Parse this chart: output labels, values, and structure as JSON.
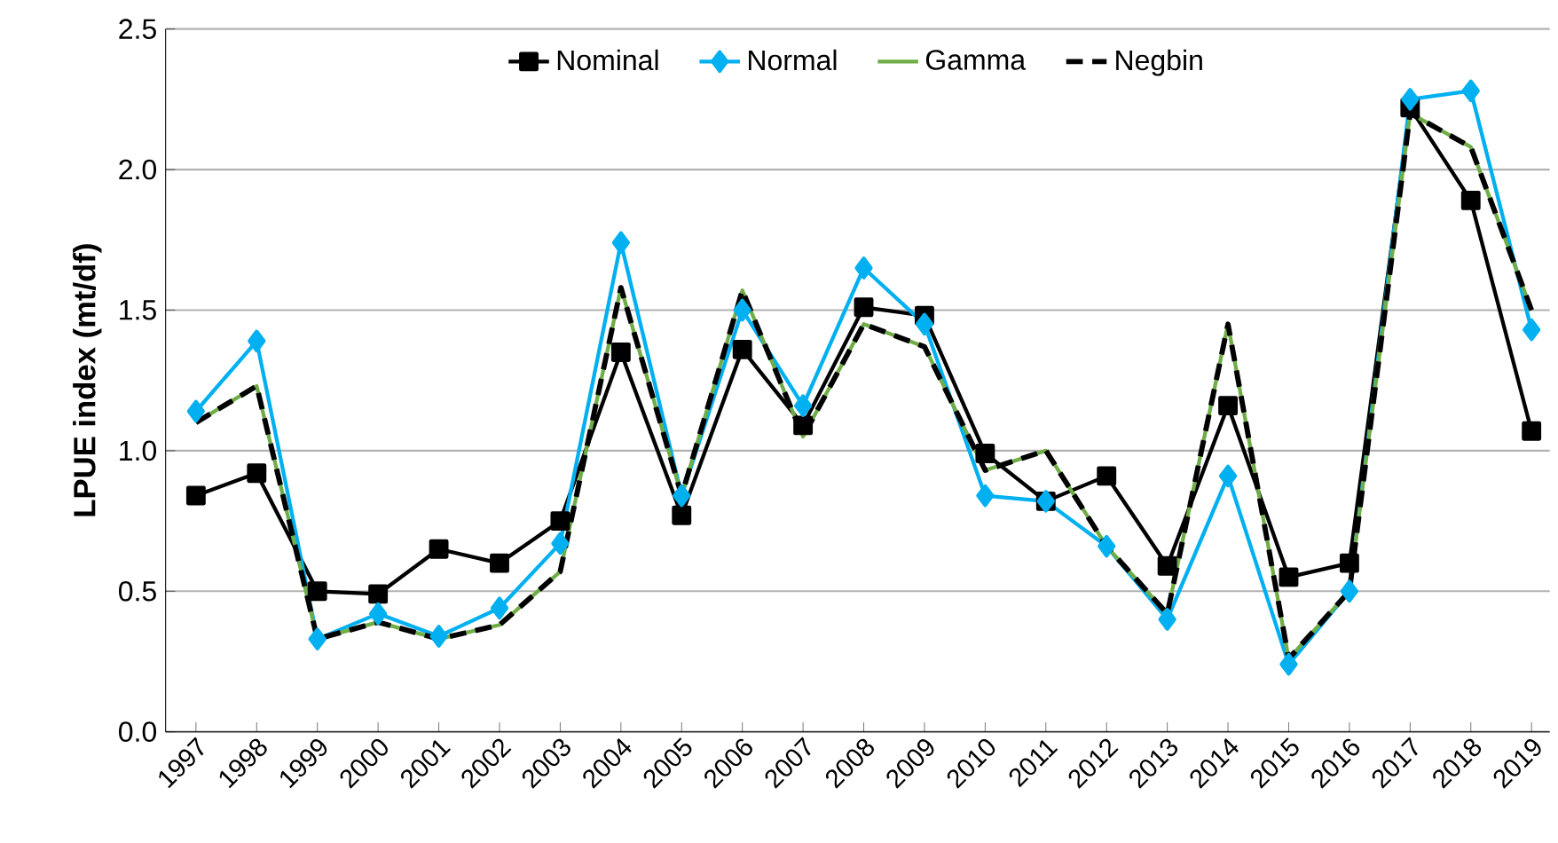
{
  "chart_data": {
    "type": "line",
    "ylabel": "LPUE index (mt/df)",
    "categories": [
      "1997",
      "1998",
      "1999",
      "2000",
      "2001",
      "2002",
      "2003",
      "2004",
      "2005",
      "2006",
      "2007",
      "2008",
      "2009",
      "2010",
      "2011",
      "2012",
      "2013",
      "2014",
      "2015",
      "2016",
      "2017",
      "2018",
      "2019"
    ],
    "series": [
      {
        "name": "Nominal",
        "color": "#000000",
        "marker": "square",
        "line_style": "solid",
        "values": [
          0.84,
          0.92,
          0.5,
          0.49,
          0.65,
          0.6,
          0.75,
          1.35,
          0.77,
          1.36,
          1.09,
          1.51,
          1.48,
          0.99,
          0.82,
          0.91,
          0.59,
          1.16,
          0.55,
          0.6,
          2.22,
          1.89,
          1.07
        ]
      },
      {
        "name": "Normal",
        "color": "#00b0f0",
        "marker": "diamond",
        "line_style": "solid",
        "values": [
          1.14,
          1.39,
          0.33,
          0.42,
          0.34,
          0.44,
          0.67,
          1.74,
          0.84,
          1.5,
          1.16,
          1.65,
          1.45,
          0.84,
          0.82,
          0.66,
          0.4,
          0.91,
          0.24,
          0.5,
          2.25,
          2.28,
          1.43
        ]
      },
      {
        "name": "Gamma",
        "color": "#70ad47",
        "marker": "none",
        "line_style": "solid",
        "values": [
          1.1,
          1.23,
          0.33,
          0.39,
          0.33,
          0.38,
          0.57,
          1.58,
          0.84,
          1.57,
          1.05,
          1.45,
          1.37,
          0.93,
          1.0,
          0.66,
          0.42,
          1.45,
          0.26,
          0.5,
          2.2,
          2.08,
          1.5
        ]
      },
      {
        "name": "Negbin",
        "color": "#000000",
        "marker": "none",
        "line_style": "dashed",
        "values": [
          1.1,
          1.23,
          0.33,
          0.39,
          0.33,
          0.38,
          0.57,
          1.58,
          0.84,
          1.57,
          1.05,
          1.45,
          1.37,
          0.93,
          1.0,
          0.66,
          0.42,
          1.45,
          0.26,
          0.5,
          2.2,
          2.08,
          1.5
        ]
      }
    ],
    "ylim": [
      0,
      2.5
    ],
    "yticks": [
      {
        "value": 0,
        "label": "0.0"
      },
      {
        "value": 0.5,
        "label": "0.5"
      },
      {
        "value": 1,
        "label": "1.0"
      },
      {
        "value": 1.5,
        "label": "1.5"
      },
      {
        "value": 2,
        "label": "2.0"
      },
      {
        "value": 2.5,
        "label": "2.5"
      }
    ],
    "grid": "y",
    "legend": "top"
  }
}
